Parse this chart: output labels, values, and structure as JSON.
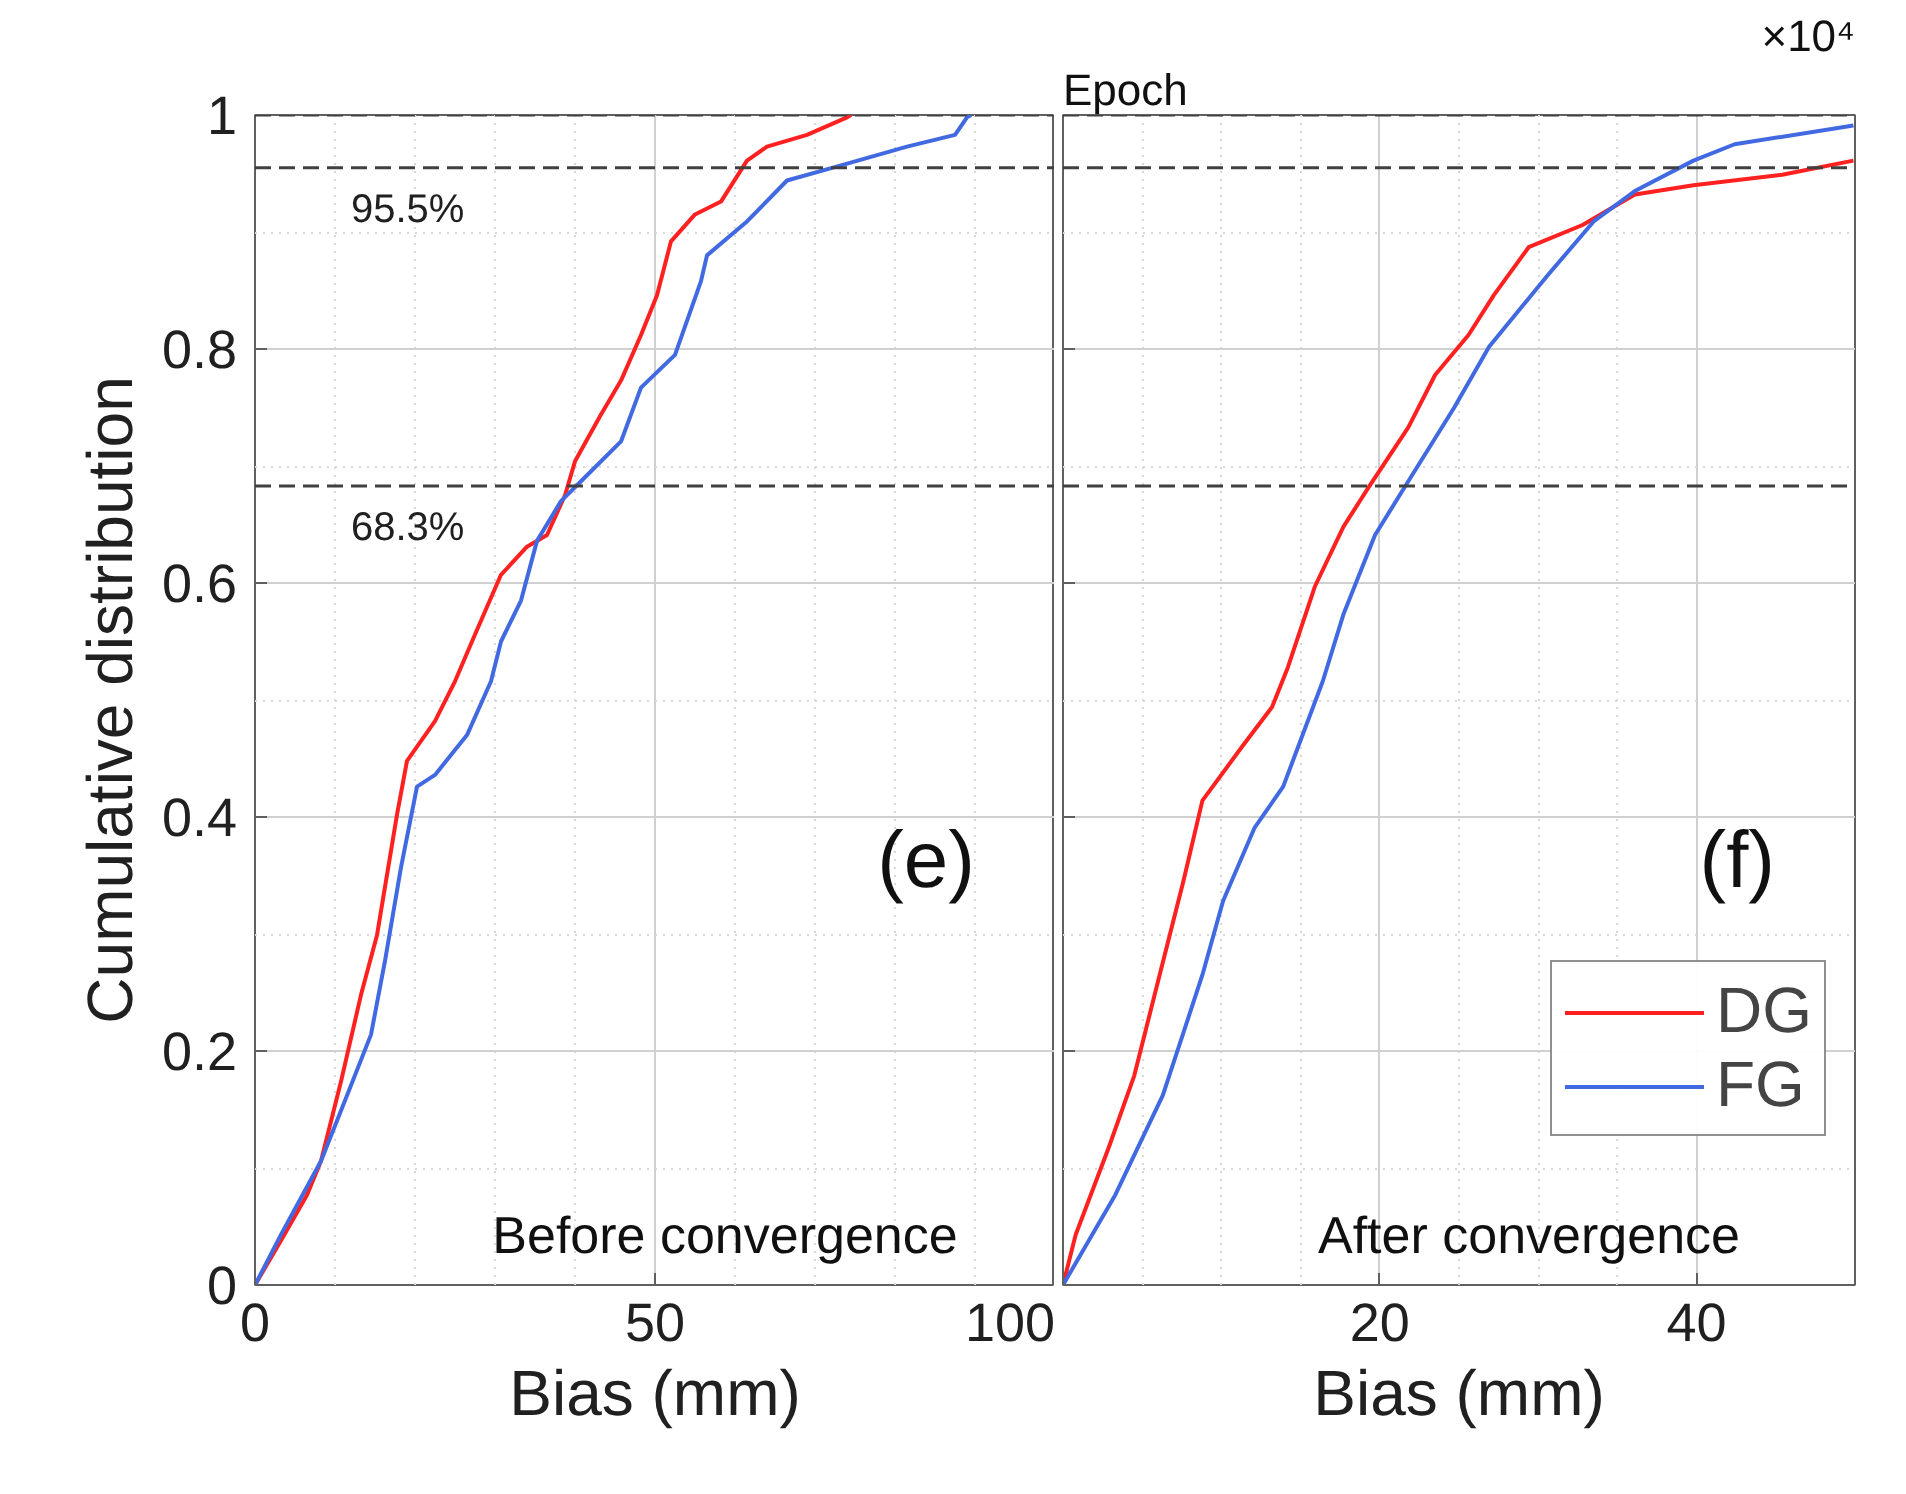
{
  "chart_data": [
    {
      "type": "line",
      "xlabel": "Bias (mm)",
      "ylabel": "Cumulative distribution",
      "xlim": [
        0,
        100
      ],
      "xticks": [
        0,
        50,
        100
      ],
      "ylim": [
        0,
        1
      ],
      "yticks": [
        0,
        0.2,
        0.4,
        0.6,
        0.8,
        1
      ],
      "grid": true,
      "legend": false,
      "line_style": "solid",
      "series": [
        {
          "color": "#ff2020",
          "x": [
            0,
            3.25,
            6.5,
            8.25,
            10.75,
            13.25,
            15.25,
            17.75,
            19,
            22.5,
            25,
            27.5,
            30.75,
            34,
            36.5,
            38.75,
            40,
            43.25,
            45.75,
            48.25,
            50.25,
            52,
            55,
            58.25,
            61.5,
            64,
            69,
            74,
            74.5
          ],
          "values": [
            0,
            0.038,
            0.077,
            0.106,
            0.174,
            0.248,
            0.299,
            0.402,
            0.448,
            0.482,
            0.516,
            0.556,
            0.607,
            0.631,
            0.641,
            0.675,
            0.704,
            0.744,
            0.773,
            0.812,
            0.846,
            0.892,
            0.915,
            0.926,
            0.961,
            0.973,
            0.983,
            0.998,
            1
          ]
        },
        {
          "color": "#4169e1",
          "x": [
            0,
            3.25,
            8.25,
            11.5,
            14.5,
            16.25,
            18.25,
            20.25,
            22.5,
            26.5,
            29.5,
            30.75,
            33.25,
            35.25,
            38.25,
            40.75,
            45.75,
            48.25,
            52.5,
            55.75,
            56.5,
            61.5,
            66.5,
            73.25,
            81.5,
            87.5,
            89,
            89.5
          ],
          "values": [
            0,
            0.043,
            0.106,
            0.162,
            0.214,
            0.277,
            0.357,
            0.426,
            0.436,
            0.47,
            0.516,
            0.55,
            0.585,
            0.636,
            0.67,
            0.687,
            0.721,
            0.767,
            0.795,
            0.858,
            0.88,
            0.909,
            0.944,
            0.957,
            0.973,
            0.983,
            0.998,
            1
          ]
        }
      ],
      "ref_lines": [
        {
          "axis": "y",
          "value": 1,
          "label": null,
          "line_style": "dashed",
          "color": "#404040"
        },
        {
          "axis": "y",
          "value": 0.955,
          "label": "95.5%",
          "line_style": "dashed",
          "color": "#404040"
        },
        {
          "axis": "y",
          "value": 0.683,
          "label": "68.3%",
          "line_style": "dashed",
          "color": "#404040"
        }
      ],
      "annotations": [
        "(e)",
        "Before convergence"
      ]
    },
    {
      "type": "line",
      "xlabel": "Bias (mm)",
      "xlim": [
        0,
        50
      ],
      "xticks": [
        {
          "value": 0,
          "label": null
        },
        20,
        40
      ],
      "ylim": [
        0,
        1
      ],
      "yticks": [
        0,
        0.2,
        0.4,
        0.6,
        0.8,
        1
      ],
      "tick_labels": "x",
      "grid": true,
      "legend": "bottom right",
      "line_style": "solid",
      "series": [
        {
          "name": "DG",
          "color": "#ff2020",
          "x": [
            0,
            0.8,
            2.9,
            4.5,
            6.1,
            7.6,
            8.8,
            11.3,
            13.2,
            14.2,
            15.9,
            17.7,
            19.3,
            21.8,
            23.5,
            25.6,
            27.2,
            29.4,
            32.8,
            36.1,
            39.8,
            45.4,
            49.9
          ],
          "values": [
            0,
            0.043,
            0.118,
            0.179,
            0.265,
            0.345,
            0.414,
            0.46,
            0.494,
            0.528,
            0.597,
            0.648,
            0.682,
            0.733,
            0.778,
            0.812,
            0.846,
            0.887,
            0.906,
            0.932,
            0.94,
            0.949,
            0.961
          ]
        },
        {
          "name": "FG",
          "color": "#4169e1",
          "x": [
            0,
            3.3,
            6.3,
            8.8,
            10.1,
            12.1,
            13.9,
            16.4,
            17.7,
            19.7,
            21.8,
            24.7,
            26.9,
            30.6,
            33.5,
            36.1,
            39.8,
            42.4,
            49.9
          ],
          "values": [
            0,
            0.077,
            0.162,
            0.265,
            0.328,
            0.391,
            0.426,
            0.516,
            0.573,
            0.641,
            0.687,
            0.75,
            0.802,
            0.863,
            0.909,
            0.935,
            0.961,
            0.975,
            0.991
          ]
        }
      ],
      "ref_lines": [
        {
          "axis": "y",
          "value": 1,
          "label": null,
          "line_style": "dashed",
          "color": "#404040"
        },
        {
          "axis": "y",
          "value": 0.955,
          "label": null,
          "line_style": "dashed",
          "color": "#404040"
        },
        {
          "axis": "y",
          "value": 0.683,
          "label": null,
          "line_style": "dashed",
          "color": "#404040"
        }
      ],
      "annotations": [
        "(f)",
        "After convergence",
        "Epoch",
        "×10⁴"
      ]
    }
  ]
}
